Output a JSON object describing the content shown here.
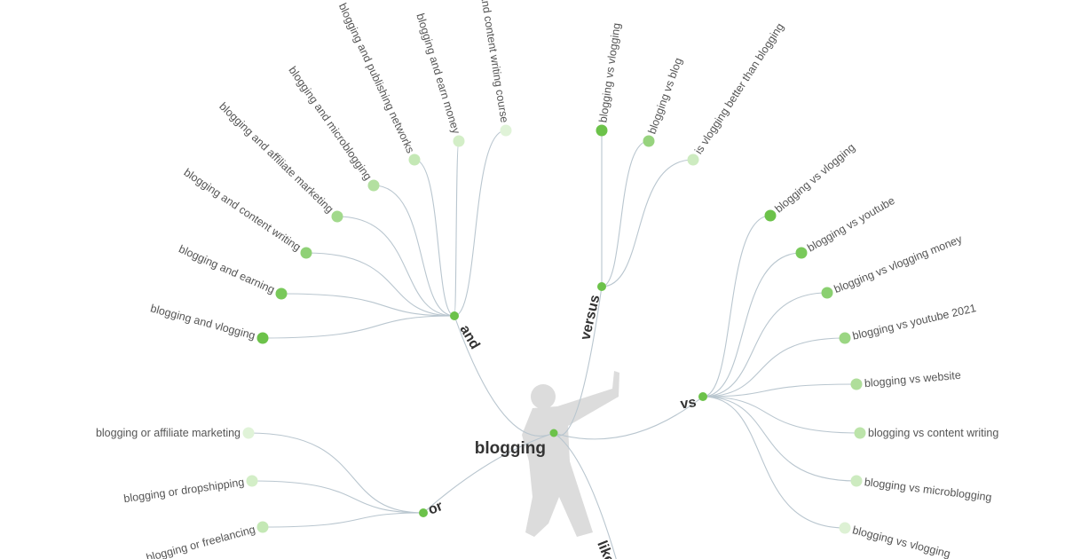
{
  "root": {
    "label": "blogging",
    "color": "#6cc24a"
  },
  "branch_color": "#6cc24a",
  "link_color": "#b9c6cf",
  "figure_icon": "person-silhouette-icon",
  "branches": [
    {
      "id": "and",
      "label": "and",
      "leaves": [
        {
          "label": "blogging and vlogging",
          "color": "#6cc24a"
        },
        {
          "label": "blogging and earning",
          "color": "#79c95a"
        },
        {
          "label": "blogging and content writing",
          "color": "#8fd176"
        },
        {
          "label": "blogging and affiliate marketing",
          "color": "#a2d98c"
        },
        {
          "label": "blogging and microblogging",
          "color": "#b3e0a0"
        },
        {
          "label": "blogging and publishing networks",
          "color": "#c4e8b5"
        },
        {
          "label": "blogging and earn money",
          "color": "#d3eec7"
        },
        {
          "label": "blogging and content writing course",
          "color": "#e0f3d8"
        }
      ]
    },
    {
      "id": "versus",
      "label": "versus",
      "leaves": [
        {
          "label": "blogging vs vlogging",
          "color": "#6cc24a"
        },
        {
          "label": "blogging vs blog",
          "color": "#97d37e"
        },
        {
          "label": "is vlogging better than blogging",
          "color": "#cdebc0"
        }
      ]
    },
    {
      "id": "vs",
      "label": "vs",
      "leaves": [
        {
          "label": "blogging vs vlogging",
          "color": "#6cc24a"
        },
        {
          "label": "blogging vs youtube",
          "color": "#79c95a"
        },
        {
          "label": "blogging vs vlogging money",
          "color": "#8ad070"
        },
        {
          "label": "blogging vs youtube 2021",
          "color": "#9bd683"
        },
        {
          "label": "blogging vs website",
          "color": "#afde9a"
        },
        {
          "label": "blogging vs content writing",
          "color": "#bce4aa"
        },
        {
          "label": "blogging vs microblogging",
          "color": "#cdebc0"
        },
        {
          "label": "blogging vs vlogging",
          "color": "#ddf1d4"
        }
      ]
    },
    {
      "id": "or",
      "label": "or",
      "leaves": [
        {
          "label": "blogging or affiliate marketing",
          "color": "#e0f3d8"
        },
        {
          "label": "blogging or dropshipping",
          "color": "#d3eec7"
        },
        {
          "label": "blogging or freelancing",
          "color": "#c4e8b5"
        }
      ]
    },
    {
      "id": "like",
      "label": "like",
      "leaves": []
    }
  ]
}
